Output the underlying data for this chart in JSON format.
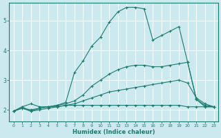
{
  "xlabel": "Humidex (Indice chaleur)",
  "ylabel": "",
  "bg_color": "#cce9f0",
  "line_color": "#1a7a6e",
  "grid_color": "#b0d8e0",
  "xlim": [
    -0.5,
    23.5
  ],
  "ylim": [
    1.6,
    5.6
  ],
  "xticks": [
    0,
    1,
    2,
    3,
    4,
    5,
    6,
    7,
    8,
    9,
    10,
    11,
    12,
    13,
    14,
    15,
    16,
    17,
    18,
    19,
    20,
    21,
    22,
    23
  ],
  "yticks": [
    2,
    3,
    4,
    5
  ],
  "lines": [
    {
      "x": [
        0,
        1,
        2,
        3,
        4,
        5,
        6,
        7,
        8,
        9,
        10,
        11,
        12,
        13,
        14,
        15,
        16,
        17,
        18,
        19,
        20,
        21,
        22,
        23
      ],
      "y": [
        1.95,
        2.1,
        1.95,
        2.05,
        2.1,
        2.1,
        2.15,
        2.15,
        2.15,
        2.15,
        2.15,
        2.15,
        2.15,
        2.15,
        2.15,
        2.15,
        2.15,
        2.15,
        2.15,
        2.15,
        2.1,
        2.1,
        2.1,
        2.1
      ]
    },
    {
      "x": [
        0,
        1,
        2,
        3,
        4,
        5,
        6,
        7,
        8,
        9,
        10,
        11,
        12,
        13,
        14,
        15,
        16,
        17,
        18,
        19,
        20,
        21,
        22,
        23
      ],
      "y": [
        1.95,
        2.05,
        1.95,
        2.0,
        2.05,
        2.1,
        2.15,
        2.2,
        2.3,
        2.4,
        2.5,
        2.6,
        2.65,
        2.7,
        2.75,
        2.8,
        2.85,
        2.9,
        2.95,
        3.0,
        2.9,
        2.4,
        2.2,
        2.1
      ]
    },
    {
      "x": [
        0,
        1,
        2,
        3,
        4,
        5,
        6,
        7,
        8,
        9,
        10,
        11,
        12,
        13,
        14,
        15,
        16,
        17,
        18,
        19,
        20,
        21,
        22,
        23
      ],
      "y": [
        1.95,
        2.05,
        2.0,
        2.05,
        2.1,
        2.15,
        2.2,
        2.3,
        2.5,
        2.8,
        3.0,
        3.2,
        3.35,
        3.45,
        3.5,
        3.5,
        3.45,
        3.45,
        3.5,
        3.55,
        3.6,
        2.35,
        2.1,
        2.1
      ]
    },
    {
      "x": [
        0,
        1,
        2,
        3,
        4,
        5,
        6,
        7,
        8,
        9,
        10,
        11,
        12,
        13,
        14,
        15,
        16,
        17,
        18,
        19,
        20,
        21,
        22,
        23
      ],
      "y": [
        1.95,
        2.1,
        2.2,
        2.1,
        2.1,
        2.15,
        2.25,
        3.25,
        3.65,
        4.15,
        4.45,
        4.95,
        5.3,
        5.45,
        5.45,
        5.4,
        4.35,
        4.5,
        4.65,
        4.8,
        3.6,
        2.35,
        2.15,
        2.1
      ]
    }
  ]
}
